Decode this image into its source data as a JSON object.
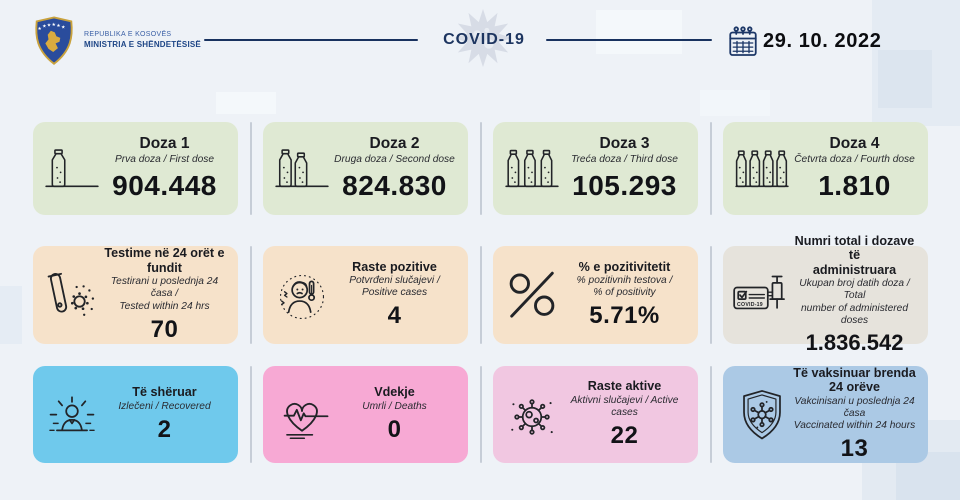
{
  "header": {
    "republic_line": "REPUBLIKA E KOSOVËS",
    "ministry_line": "MINISTRIA E SHËNDETËSISË",
    "title": "COVID-19",
    "date": "29. 10. 2022",
    "emblem_icon": "kosovo-coat-of-arms",
    "calendar_icon": "calendar-icon",
    "watermark_icon": "virus-watermark-icon"
  },
  "colors": {
    "background": "#eef2f7",
    "navy": "#18325f",
    "text_dark": "#121317",
    "green_card": "#dfe9d3",
    "peach_card": "#f6e2ca",
    "gray_card": "#e6e3dc",
    "sky_card": "#6fc9ec",
    "pink_card": "#f7a9d4",
    "light_pink_card": "#f1c7e1",
    "steel_card": "#abc9e5"
  },
  "cards": [
    {
      "id": "doza-1",
      "title_lines": [
        "Doza 1"
      ],
      "subtitle_lines": [
        "Prva doza / First dose"
      ],
      "value": "904.448",
      "icon": "ampoule-1-icon",
      "color": "#dfe9d3"
    },
    {
      "id": "doza-2",
      "title_lines": [
        "Doza 2"
      ],
      "subtitle_lines": [
        "Druga doza / Second dose"
      ],
      "value": "824.830",
      "icon": "ampoule-2-icon",
      "color": "#dfe9d3"
    },
    {
      "id": "doza-3",
      "title_lines": [
        "Doza 3"
      ],
      "subtitle_lines": [
        "Treća doza / Third dose"
      ],
      "value": "105.293",
      "icon": "ampoule-3-icon",
      "color": "#dfe9d3"
    },
    {
      "id": "doza-4",
      "title_lines": [
        "Doza 4"
      ],
      "subtitle_lines": [
        "Četvrta doza / Fourth dose"
      ],
      "value": "1.810",
      "icon": "ampoule-4-icon",
      "color": "#dfe9d3"
    },
    {
      "id": "tests-24h",
      "title_lines": [
        "Testime në 24 orët e fundit"
      ],
      "subtitle_lines": [
        "Testirani u poslednja 24 časa /",
        "Tested within 24 hrs"
      ],
      "value": "70",
      "icon": "test-tube-icon",
      "color": "#f6e2ca"
    },
    {
      "id": "positive-cases",
      "title_lines": [
        "Raste pozitive"
      ],
      "subtitle_lines": [
        "Potvrđeni slučajevi /",
        "Positive cases"
      ],
      "value": "4",
      "icon": "sick-person-icon",
      "color": "#f6e2ca"
    },
    {
      "id": "positivity-rate",
      "title_lines": [
        "% e pozitivitetit"
      ],
      "subtitle_lines": [
        "% pozitivnih testova /",
        "% of positivity"
      ],
      "value": "5.71%",
      "icon": "percent-icon",
      "color": "#f6e2ca"
    },
    {
      "id": "total-doses",
      "title_lines": [
        "Numri total i dozave të",
        "administruara"
      ],
      "subtitle_lines": [
        "Ukupan broj datih doza / Total",
        "number of administered doses"
      ],
      "value": "1.836.542",
      "icon": "vaccination-card-icon",
      "color": "#e6e3dc"
    },
    {
      "id": "recovered",
      "title_lines": [
        "Të shëruar"
      ],
      "subtitle_lines": [
        "Izlečeni / Recovered"
      ],
      "value": "2",
      "icon": "recovered-person-icon",
      "color": "#6fc9ec"
    },
    {
      "id": "deaths",
      "title_lines": [
        "Vdekje"
      ],
      "subtitle_lines": [
        "Umrli / Deaths"
      ],
      "value": "0",
      "icon": "heart-ekg-icon",
      "color": "#f7a9d4"
    },
    {
      "id": "active-cases",
      "title_lines": [
        "Raste aktive"
      ],
      "subtitle_lines": [
        "Aktivni slučajevi / Active cases"
      ],
      "value": "22",
      "icon": "virus-icon",
      "color": "#f1c7e1"
    },
    {
      "id": "vaccinated-24h",
      "title_lines": [
        "Të vaksinuar brenda",
        "24 orëve"
      ],
      "subtitle_lines": [
        "Vakcinisani u poslednja 24 časa",
        "Vaccinated within 24 hours"
      ],
      "value": "13",
      "icon": "shield-virus-icon",
      "color": "#abc9e5"
    }
  ],
  "chart_data": {
    "type": "table",
    "title": "COVID-19",
    "date": "29. 10. 2022",
    "metrics": [
      {
        "label": "Doza 1 (Prva doza / First dose)",
        "value": 904448,
        "display": "904.448"
      },
      {
        "label": "Doza 2 (Druga doza / Second dose)",
        "value": 824830,
        "display": "824.830"
      },
      {
        "label": "Doza 3 (Treća doza / Third dose)",
        "value": 105293,
        "display": "105.293"
      },
      {
        "label": "Doza 4 (Četvrta doza / Fourth dose)",
        "value": 1810,
        "display": "1.810"
      },
      {
        "label": "Testime në 24 orët e fundit (Tested within 24 hrs)",
        "value": 70,
        "display": "70"
      },
      {
        "label": "Raste pozitive (Positive cases)",
        "value": 4,
        "display": "4"
      },
      {
        "label": "% e pozitivitetit (% of positivity)",
        "value": 5.71,
        "display": "5.71%"
      },
      {
        "label": "Numri total i dozave të administruara (Total administered doses)",
        "value": 1836542,
        "display": "1.836.542"
      },
      {
        "label": "Të shëruar (Recovered)",
        "value": 2,
        "display": "2"
      },
      {
        "label": "Vdekje (Deaths)",
        "value": 0,
        "display": "0"
      },
      {
        "label": "Raste aktive (Active cases)",
        "value": 22,
        "display": "22"
      },
      {
        "label": "Të vaksinuar brenda 24 orëve (Vaccinated within 24 hours)",
        "value": 13,
        "display": "13"
      }
    ]
  }
}
